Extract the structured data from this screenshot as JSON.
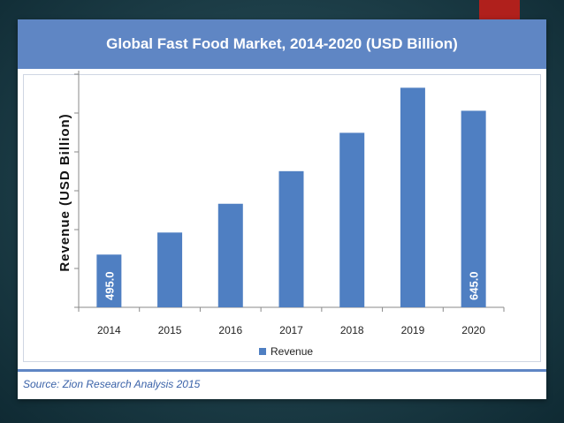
{
  "colors": {
    "bar": "#4f7fc2",
    "banner": "#5f86c4",
    "accent": "#b0201c"
  },
  "chart_data": {
    "type": "bar",
    "title": "Global Fast Food Market, 2014-2020 (USD Billion)",
    "ylabel": "Revenue (USD Billion)",
    "xlabel": "",
    "categories": [
      "2014",
      "2015",
      "2016",
      "2017",
      "2018",
      "2019",
      "2020"
    ],
    "series": [
      {
        "name": "Revenue",
        "values": [
          495.0,
          518,
          548,
          582,
          622,
          669,
          645.0
        ]
      }
    ],
    "data_labels": [
      "495.0",
      "",
      "",
      "",
      "",
      "",
      "645.0"
    ],
    "legend": "bottom",
    "grid": false
  },
  "source": "Source: Zion Research Analysis 2015"
}
